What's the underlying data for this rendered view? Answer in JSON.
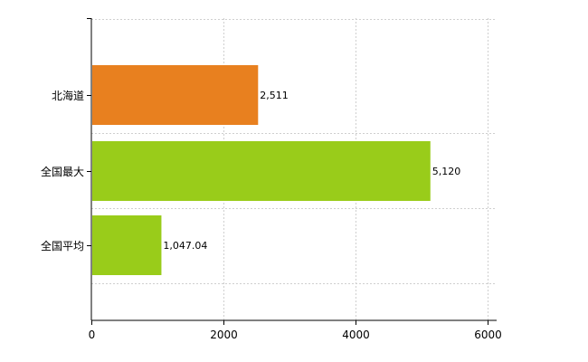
{
  "chart_data": {
    "type": "bar",
    "orientation": "horizontal",
    "categories": [
      "北海道",
      "全国最大",
      "全国平均"
    ],
    "values": [
      2511,
      5120,
      1047.04
    ],
    "data_labels": [
      "2,511",
      "5,120",
      "1,047.04"
    ],
    "bar_colors": [
      "#e8801f",
      "#99cc1a",
      "#99cc1a"
    ],
    "xlim": [
      0,
      6000
    ],
    "x_ticks": [
      0,
      2000,
      4000,
      6000
    ],
    "x_tick_labels": [
      "0",
      "2000",
      "4000",
      "6000"
    ],
    "grid": true,
    "title": "",
    "xlabel": "",
    "ylabel": ""
  }
}
